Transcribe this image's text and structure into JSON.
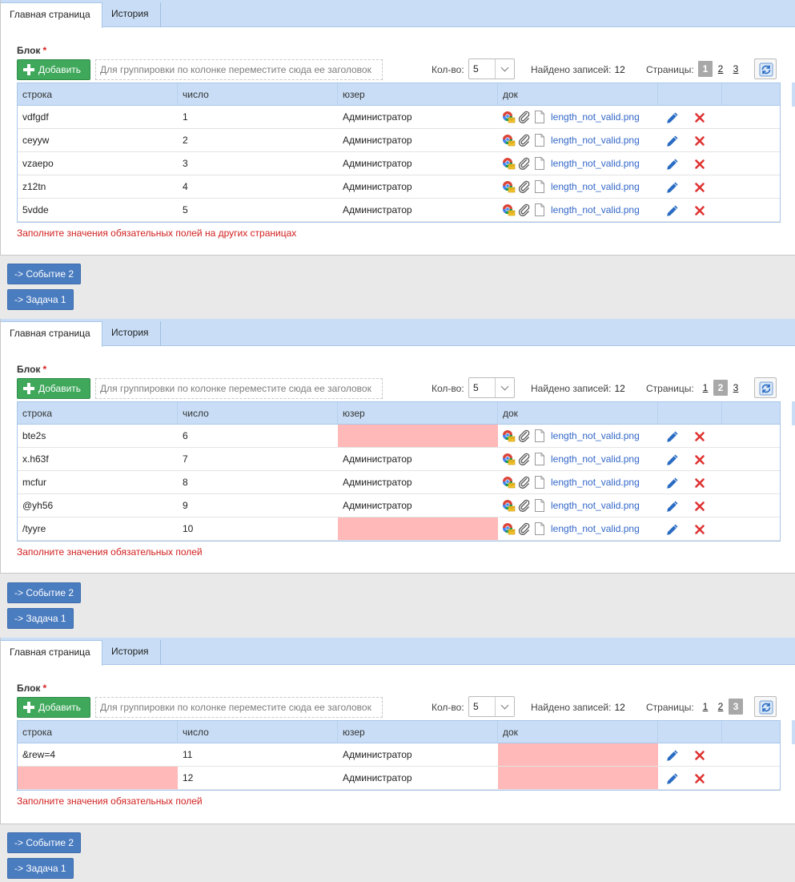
{
  "tabs": [
    "Главная страница",
    "История"
  ],
  "block_label": "Блок",
  "required_mark": "*",
  "add_label": "Добавить",
  "group_placeholder": "Для группировки по колонке переместите сюда ее заголовок",
  "count_label": "Кол-во:",
  "count_value": "5",
  "found_label": "Найдено записей:",
  "found_value": "12",
  "pages_label": "Страницы:",
  "columns": [
    "строка",
    "число",
    "юзер",
    "док"
  ],
  "buttons": {
    "event": "-> Событие 2",
    "task": "-> Задача 1"
  },
  "panels": [
    {
      "pages": [
        "1",
        "2",
        "3"
      ],
      "current_page": "1",
      "rows": [
        {
          "str": "vdfgdf",
          "num": "1",
          "user": "Администратор",
          "doc": "length_not_valid.png"
        },
        {
          "str": "ceyyw",
          "num": "2",
          "user": "Администратор",
          "doc": "length_not_valid.png"
        },
        {
          "str": "vzaepo",
          "num": "3",
          "user": "Администратор",
          "doc": "length_not_valid.png"
        },
        {
          "str": "z12tn",
          "num": "4",
          "user": "Администратор",
          "doc": "length_not_valid.png"
        },
        {
          "str": "5vdde",
          "num": "5",
          "user": "Администратор",
          "doc": "length_not_valid.png"
        }
      ],
      "error": "Заполните значения обязательных полей на других страницах"
    },
    {
      "pages": [
        "1",
        "2",
        "3"
      ],
      "current_page": "2",
      "rows": [
        {
          "str": "bte2s",
          "num": "6",
          "user": "",
          "doc": "length_not_valid.png"
        },
        {
          "str": "x.h63f",
          "num": "7",
          "user": "Администратор",
          "doc": "length_not_valid.png"
        },
        {
          "str": "mcfur",
          "num": "8",
          "user": "Администратор",
          "doc": "length_not_valid.png"
        },
        {
          "str": "@yh56",
          "num": "9",
          "user": "Администратор",
          "doc": "length_not_valid.png"
        },
        {
          "str": "/tyyre",
          "num": "10",
          "user": "",
          "doc": "length_not_valid.png"
        }
      ],
      "error": "Заполните значения обязательных полей"
    },
    {
      "pages": [
        "1",
        "2",
        "3"
      ],
      "current_page": "3",
      "rows": [
        {
          "str": "&rew=4",
          "num": "11",
          "user": "Администратор",
          "doc": ""
        },
        {
          "str": "",
          "num": "12",
          "user": "Администратор",
          "doc": ""
        }
      ],
      "error": "Заполните значения обязательных полей"
    }
  ],
  "colors": {
    "header_bg": "#c9def6",
    "add_green": "#3fa85b",
    "link_blue": "#3367c8",
    "error_red": "#d21f1f",
    "invalid_cell": "#ffb9b9",
    "button_blue": "#4a7cc0"
  },
  "icons": [
    "plus-icon",
    "refresh-icon",
    "chrome-mail-icon",
    "paperclip-icon",
    "file-icon",
    "pencil-icon",
    "delete-x-icon"
  ]
}
